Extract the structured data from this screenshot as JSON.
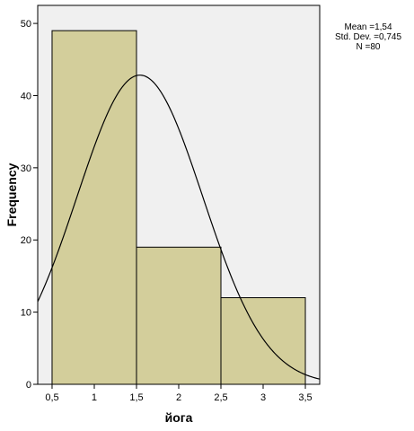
{
  "chart_data": {
    "type": "bar",
    "subtype": "histogram",
    "bins": [
      {
        "from": 0.5,
        "to": 1.5,
        "value": 49
      },
      {
        "from": 1.5,
        "to": 2.5,
        "value": 19
      },
      {
        "from": 2.5,
        "to": 3.5,
        "value": 12
      }
    ],
    "normal_curve": {
      "mean": 1.54,
      "std_dev": 0.745,
      "n": 80,
      "bin_width": 1
    },
    "xlabel": "йога",
    "ylabel": "Frequency",
    "xlim": [
      0.33,
      3.67
    ],
    "ylim": [
      0,
      52.5
    ],
    "x_ticks": [
      {
        "value": 0.5,
        "label": "0,5"
      },
      {
        "value": 1,
        "label": "1"
      },
      {
        "value": 1.5,
        "label": "1,5"
      },
      {
        "value": 2,
        "label": "2"
      },
      {
        "value": 2.5,
        "label": "2,5"
      },
      {
        "value": 3,
        "label": "3"
      },
      {
        "value": 3.5,
        "label": "3,5"
      }
    ],
    "y_ticks": [
      {
        "value": 0,
        "label": "0"
      },
      {
        "value": 10,
        "label": "10"
      },
      {
        "value": 20,
        "label": "20"
      },
      {
        "value": 30,
        "label": "30"
      },
      {
        "value": 40,
        "label": "40"
      },
      {
        "value": 50,
        "label": "50"
      }
    ],
    "grid": false,
    "legend": "none",
    "colors": {
      "bar_fill": "#d3ce9b",
      "plot_bg": "#f0f0f0",
      "line": "#000000"
    }
  },
  "stats_box": {
    "mean": "Mean =1,54",
    "std_dev": "Std. Dev. =0,745",
    "n": "N =80"
  }
}
